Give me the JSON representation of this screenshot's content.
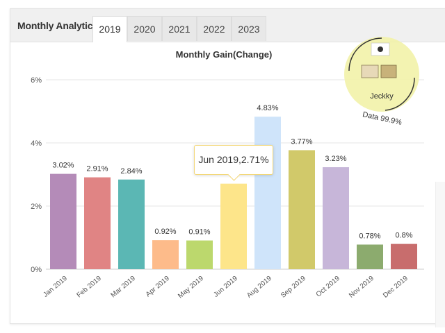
{
  "panel": {
    "title": "Monthly Analytics",
    "tabs": [
      {
        "label": "2019",
        "active": true
      },
      {
        "label": "2020",
        "active": false
      },
      {
        "label": "2021",
        "active": false
      },
      {
        "label": "2022",
        "active": false
      },
      {
        "label": "2023",
        "active": false
      }
    ]
  },
  "watermark": {
    "name": "Jeckky",
    "tagline": "Data 99.9%"
  },
  "tooltip": {
    "text": "Jun 2019,2.71%"
  },
  "chart_data": {
    "type": "bar",
    "title": "Monthly Gain(Change)",
    "xlabel": "",
    "ylabel": "",
    "ylim": [
      0,
      6
    ],
    "y_ticks": [
      "0%",
      "2%",
      "4%",
      "6%"
    ],
    "grid": true,
    "categories": [
      "Jan 2019",
      "Feb 2019",
      "Mar 2019",
      "Apr 2019",
      "May 2019",
      "Jun 2019",
      "Aug 2019",
      "Sep 2019",
      "Oct 2019",
      "Nov 2019",
      "Dec 2019"
    ],
    "values": [
      3.02,
      2.91,
      2.84,
      0.92,
      0.91,
      2.71,
      4.83,
      3.77,
      3.23,
      0.78,
      0.8
    ],
    "value_labels": [
      "3.02%",
      "2.91%",
      "2.84%",
      "0.92%",
      "0.91%",
      "",
      "4.83%",
      "3.77%",
      "3.23%",
      "0.78%",
      "0.8%"
    ],
    "colors": [
      "#b48bb8",
      "#e08484",
      "#5bb7b4",
      "#fdbb8a",
      "#bcd86d",
      "#fde58a",
      "#cfe4fa",
      "#d1c96a",
      "#c7b6d9",
      "#8cab6e",
      "#c86d6d"
    ]
  }
}
